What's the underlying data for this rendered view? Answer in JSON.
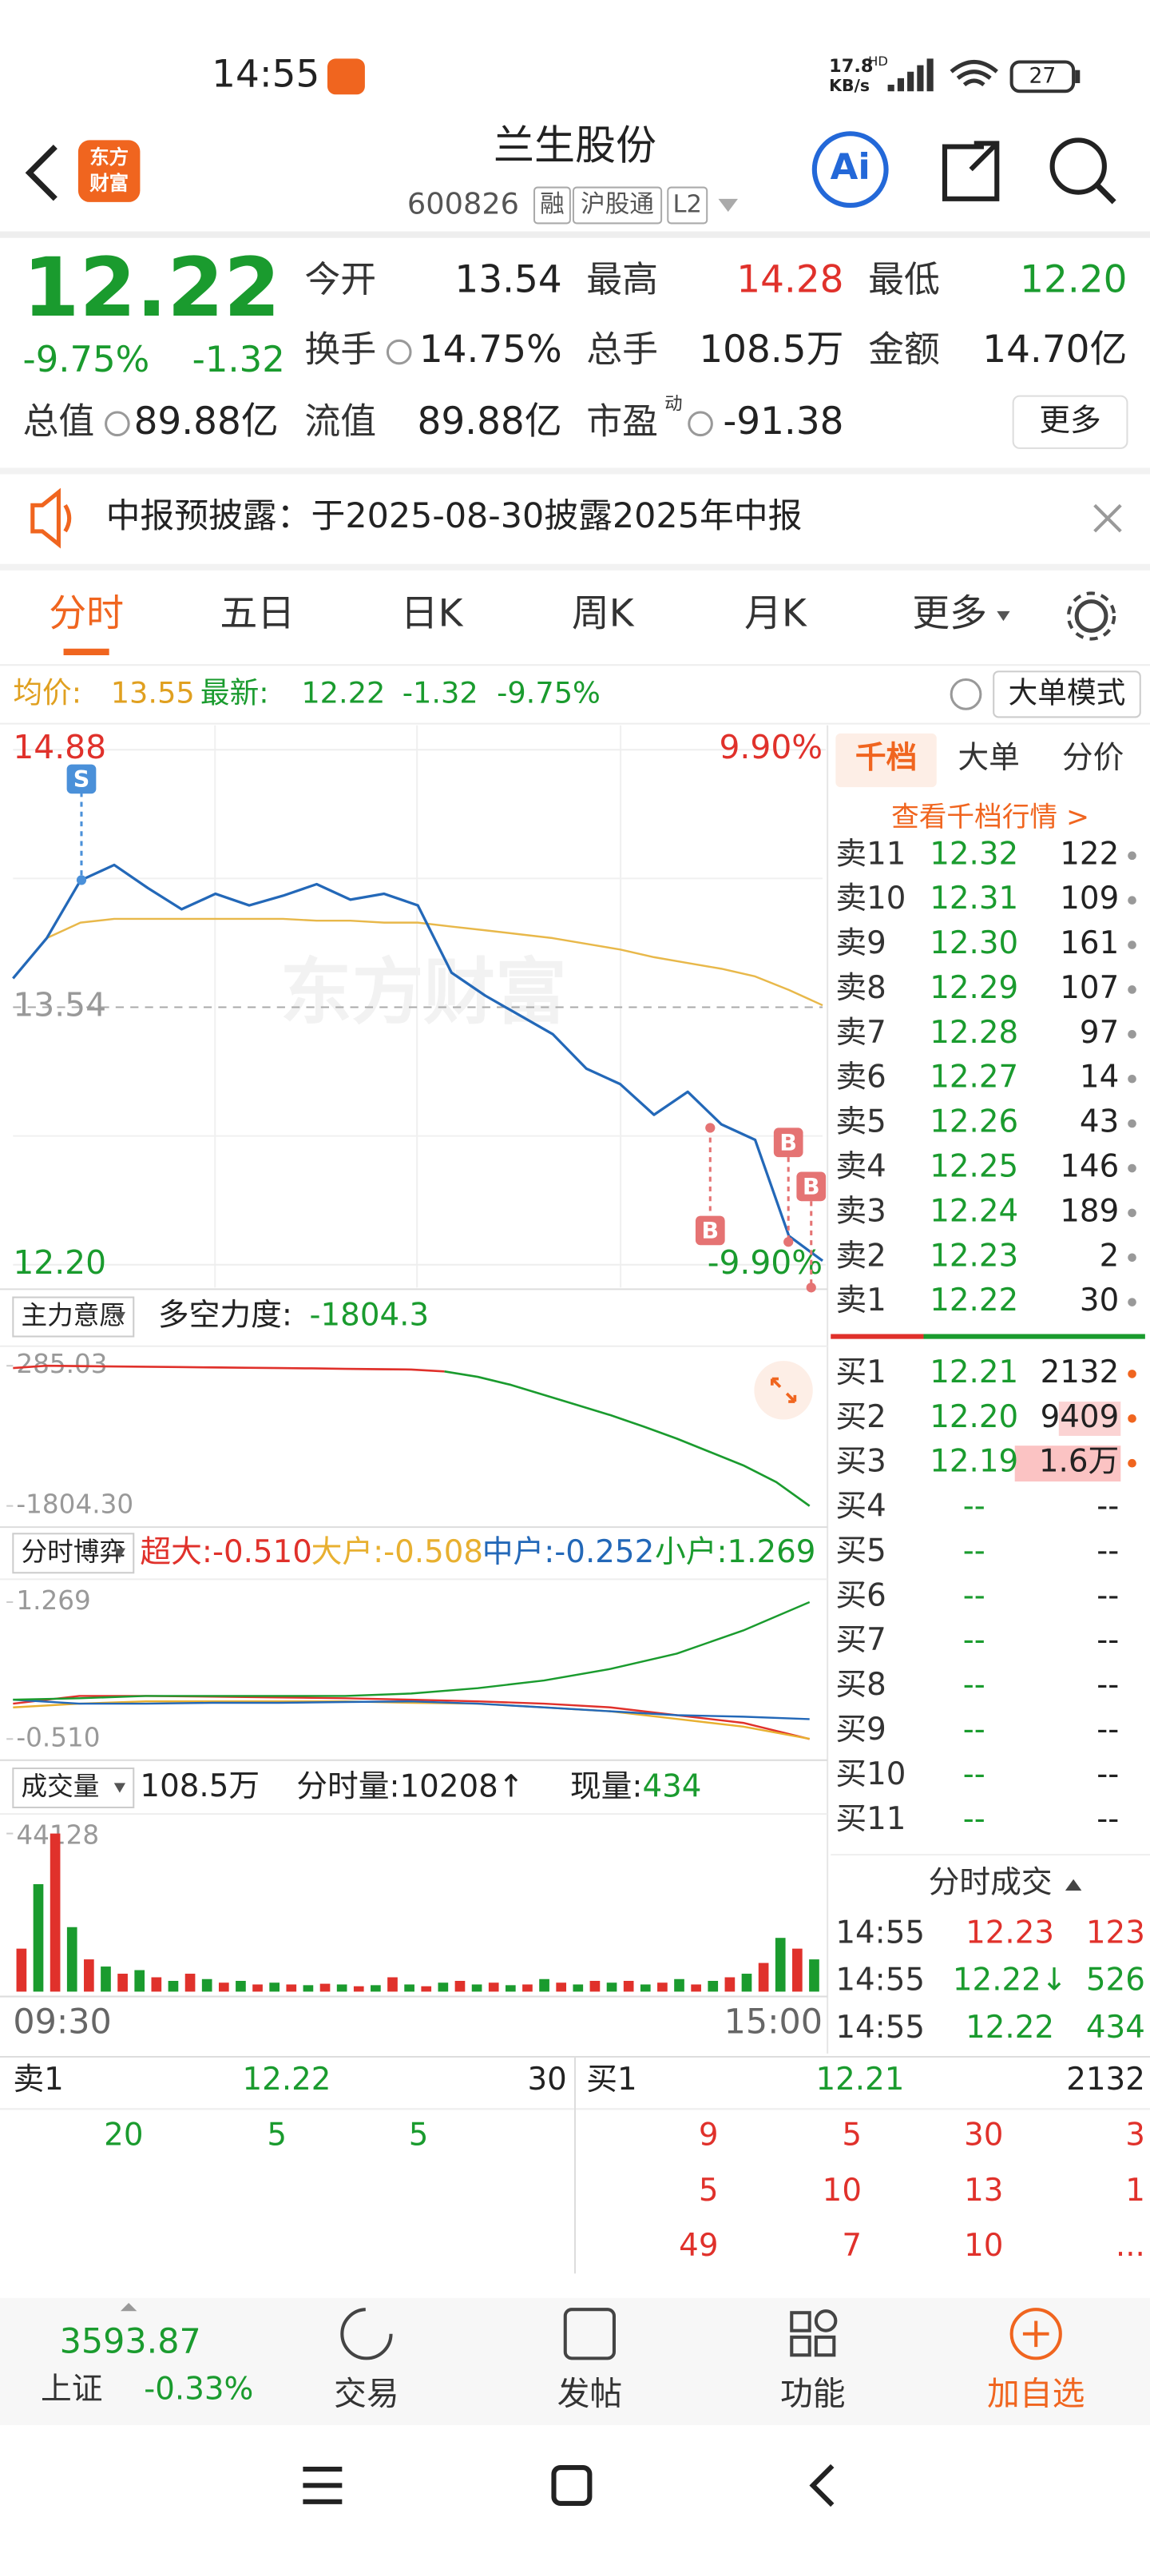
{
  "status_bar": {
    "time": "14:55",
    "net_speed": "17.8",
    "net_unit": "KB/s",
    "net_type": "HD",
    "battery": "27"
  },
  "header": {
    "logo": [
      "东方",
      "财富"
    ],
    "title": "兰生股份",
    "code": "600826",
    "tags": [
      "融",
      "沪股通",
      "L2"
    ],
    "ai_button": "Ai"
  },
  "quote": {
    "price": "12.22",
    "price_color": "#1a9b2e",
    "change_pct": "-9.75%",
    "change": "-1.32",
    "fields": [
      {
        "label": "今开",
        "value": "13.54"
      },
      {
        "label": "最高",
        "value": "14.28",
        "color": "#e0312b"
      },
      {
        "label": "最低",
        "value": "12.20",
        "color": "#1a9b2e"
      },
      {
        "label": "换手",
        "value": "14.75%"
      },
      {
        "label": "总手",
        "value": "108.5万"
      },
      {
        "label": "金额",
        "value": "14.70亿"
      },
      {
        "label": "总值",
        "value": "89.88亿"
      },
      {
        "label": "流值",
        "value": "89.88亿"
      },
      {
        "label": "市盈",
        "superscript": "动",
        "value": "-91.38"
      }
    ],
    "more_button": "更多"
  },
  "notice": {
    "text": "中报预披露：于2025-08-30披露2025年中报"
  },
  "tabs": {
    "items": [
      "分时",
      "五日",
      "日K",
      "周K",
      "月K",
      "更多"
    ],
    "active": 0
  },
  "info_line": {
    "avg_label": "均价:",
    "avg": "13.55",
    "latest_label": "最新:",
    "latest": "12.22",
    "change": "-1.32",
    "change_pct": "-9.75%",
    "mode_button": "大单模式"
  },
  "chart_data": [
    {
      "type": "line",
      "watermark": "东方财富",
      "annotations": [
        "S",
        "B",
        "B",
        "B"
      ],
      "series": [
        {
          "color": "#e8b84a",
          "values": [
            13.69,
            13.9,
            13.98,
            14.0,
            14.0,
            14.0,
            14.0,
            14.0,
            14.0,
            13.99,
            13.99,
            13.98,
            13.98,
            13.96,
            13.94,
            13.92,
            13.9,
            13.87,
            13.84,
            13.8,
            13.77,
            13.74,
            13.7,
            13.63,
            13.55
          ]
        },
        {
          "color": "#2368b8",
          "values": [
            13.69,
            13.9,
            14.2,
            14.28,
            14.16,
            14.05,
            14.13,
            14.07,
            14.12,
            14.18,
            14.1,
            14.13,
            14.07,
            13.72,
            13.6,
            13.5,
            13.4,
            13.22,
            13.14,
            12.98,
            13.1,
            12.93,
            12.85,
            12.35,
            12.22
          ]
        }
      ],
      "ylim": [
        12.2,
        14.88
      ],
      "yticks": [
        14.88,
        13.54,
        {
          "value": 12.2,
          "label": "12.20"
        }
      ],
      "y2lim": [
        -9.9,
        9.9
      ],
      "y2ticks": [
        {
          "value": 9.9,
          "label": "9.90%"
        },
        {
          "value": -9.9,
          "label": "-9.90%"
        }
      ]
    },
    {
      "type": "line",
      "label": "主力意愿",
      "metric_label": "多空力度:",
      "metric": "-1804.3",
      "series": [
        {
          "color": "#e0312b",
          "values": [
            250,
            285.03,
            280,
            275,
            270,
            265,
            260,
            255,
            250,
            245,
            240,
            235,
            230,
            200,
            null,
            null,
            null,
            null,
            null,
            null,
            null,
            null,
            null,
            null,
            null
          ]
        },
        {
          "color": "#1a9b2e",
          "values": [
            null,
            null,
            null,
            null,
            null,
            null,
            null,
            null,
            null,
            null,
            null,
            null,
            null,
            200,
            120,
            0,
            -150,
            -300,
            -450,
            -620,
            -800,
            -1000,
            -1200,
            -1450,
            -1804.3
          ]
        }
      ],
      "ylim": [
        -1804.3,
        285.03
      ],
      "yticks": [
        285.03,
        {
          "value": -1804.3,
          "label": "-1804.30"
        }
      ]
    },
    {
      "type": "line",
      "label": "分时博弈",
      "separator": ":",
      "series": [
        {
          "name": "超大",
          "value_label": "-0.510",
          "color": "#e0312b",
          "values": [
            -0.05,
            0.05,
            0.05,
            0.04,
            0.03,
            0.02,
            0.0,
            -0.02,
            -0.05,
            -0.1,
            -0.2,
            -0.3,
            -0.51
          ]
        },
        {
          "name": "大户",
          "value_label": "-0.508",
          "color": "#e8b030",
          "values": [
            -0.1,
            -0.05,
            -0.02,
            -0.02,
            -0.02,
            -0.02,
            -0.04,
            -0.05,
            -0.1,
            -0.15,
            -0.25,
            -0.35,
            -0.508
          ]
        },
        {
          "name": "中户",
          "value_label": "-0.252",
          "color": "#2368b8",
          "values": [
            0.0,
            -0.05,
            -0.05,
            -0.04,
            -0.04,
            -0.03,
            -0.02,
            -0.05,
            -0.1,
            -0.15,
            -0.2,
            -0.22,
            -0.252
          ]
        },
        {
          "name": "小户",
          "value_label": "1.269",
          "color": "#1a9b2e",
          "values": [
            0.0,
            0.02,
            0.05,
            0.05,
            0.05,
            0.05,
            0.08,
            0.15,
            0.25,
            0.4,
            0.6,
            0.9,
            1.269
          ]
        }
      ],
      "ylim": [
        -0.51,
        1.269
      ],
      "yticks": [
        1.269,
        {
          "value": -0.51,
          "label": "-0.510"
        }
      ]
    },
    {
      "type": "bar",
      "label": "成交量",
      "total": "108.5万",
      "period_label": "分时量:",
      "period": "10208↑",
      "current_label": "现量:",
      "current": "434",
      "values": [
        12000,
        30000,
        44128,
        18000,
        9000,
        7000,
        5000,
        6000,
        4000,
        3000,
        5000,
        3500,
        2500,
        3000,
        2000,
        2500,
        2000,
        1800,
        2200,
        2000,
        1500,
        1800,
        4000,
        2000,
        1500,
        2500,
        3000,
        2000,
        2500,
        1800,
        2000,
        3500,
        2500,
        2000,
        3000,
        2500,
        3000,
        2000,
        2500,
        3500,
        2000,
        3000,
        4000,
        5000,
        8000,
        15000,
        12000,
        9000
      ],
      "colors": [
        "#e0312b",
        "#1a9b2e"
      ],
      "ylim": [
        0,
        44128
      ],
      "yticks": [
        44128
      ],
      "x_labels": [
        "09:30",
        "15:00"
      ]
    }
  ],
  "order_book": {
    "tabs": [
      "千档",
      "大单",
      "分价"
    ],
    "active": 0,
    "link": "查看千档行情 >",
    "asks": [
      {
        "label": "卖11",
        "price": "12.32",
        "volume": "122"
      },
      {
        "label": "卖10",
        "price": "12.31",
        "volume": "109"
      },
      {
        "label": "卖9",
        "price": "12.30",
        "volume": "161"
      },
      {
        "label": "卖8",
        "price": "12.29",
        "volume": "107"
      },
      {
        "label": "卖7",
        "price": "12.28",
        "volume": "97"
      },
      {
        "label": "卖6",
        "price": "12.27",
        "volume": "14"
      },
      {
        "label": "卖5",
        "price": "12.26",
        "volume": "43"
      },
      {
        "label": "卖4",
        "price": "12.25",
        "volume": "146"
      },
      {
        "label": "卖3",
        "price": "12.24",
        "volume": "189"
      },
      {
        "label": "卖2",
        "price": "12.23",
        "volume": "2"
      },
      {
        "label": "卖1",
        "price": "12.22",
        "volume": "30"
      }
    ],
    "bids": [
      {
        "label": "买1",
        "price": "12.21",
        "volume": "2132"
      },
      {
        "label": "买2",
        "price": "12.20",
        "volume": "9409"
      },
      {
        "label": "买3",
        "price": "12.19",
        "volume": "1.6万"
      },
      {
        "label": "买4",
        "price": "--",
        "volume": "--"
      },
      {
        "label": "买5",
        "price": "--",
        "volume": "--"
      },
      {
        "label": "买6",
        "price": "--",
        "volume": "--"
      },
      {
        "label": "买7",
        "price": "--",
        "volume": "--"
      },
      {
        "label": "买8",
        "price": "--",
        "volume": "--"
      },
      {
        "label": "买9",
        "price": "--",
        "volume": "--"
      },
      {
        "label": "买10",
        "price": "--",
        "volume": "--"
      },
      {
        "label": "买11",
        "price": "--",
        "volume": "--"
      }
    ]
  },
  "trades": {
    "title": "分时成交",
    "rows": [
      {
        "time": "14:55",
        "price": "12.23",
        "volume": "123",
        "color": "#e0312b"
      },
      {
        "time": "14:55",
        "price": "12.22↓",
        "volume": "526",
        "color": "#1a9b2e"
      },
      {
        "time": "14:55",
        "price": "12.22",
        "volume": "434",
        "color": "#1a9b2e"
      }
    ]
  },
  "bottom_table": {
    "ask": [
      "卖1",
      "12.22",
      "30"
    ],
    "bid": [
      "买1",
      "12.21",
      "2132"
    ],
    "ask_rows": [
      [
        "20",
        "5",
        "5"
      ]
    ],
    "bid_rows": [
      [
        "9",
        "5",
        "30",
        "3"
      ],
      [
        "5",
        "10",
        "13",
        "1"
      ],
      [
        "49",
        "7",
        "10",
        "..."
      ]
    ]
  },
  "bottom_nav": {
    "index_value": "3593.87",
    "index_name": "上证",
    "index_change": "-0.33%",
    "items": [
      "交易",
      "发帖",
      "功能",
      "加自选"
    ],
    "highlight": 3
  }
}
